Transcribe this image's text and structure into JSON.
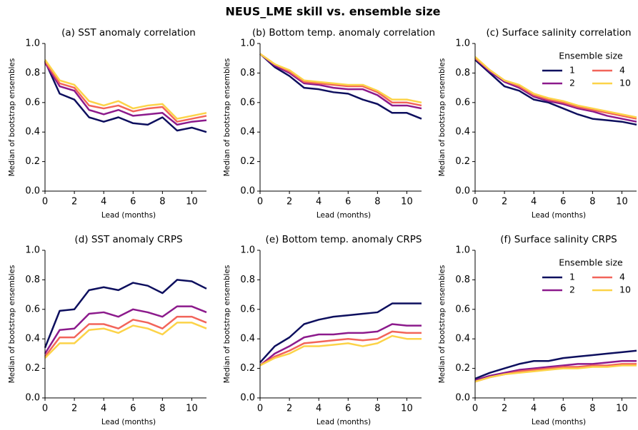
{
  "title": "NEUS_LME skill vs. ensemble size",
  "chart_data": [
    {
      "type": "line",
      "title": "(a) SST anomaly correlation",
      "xlabel": "Lead (months)",
      "ylabel": "Median of bootstrap ensembles",
      "x": [
        0,
        1,
        2,
        3,
        4,
        5,
        6,
        7,
        8,
        9,
        10,
        11
      ],
      "xlim": [
        0,
        11
      ],
      "ylim": [
        0,
        1
      ],
      "xticks": [
        0,
        2,
        4,
        6,
        8,
        10
      ],
      "yticks": [
        {
          "value": 0,
          "label": "0.0"
        },
        {
          "value": 0.2,
          "label": "0.2"
        },
        {
          "value": 0.4,
          "label": "0.4"
        },
        {
          "value": 0.6,
          "label": "0.6"
        },
        {
          "value": 0.8,
          "label": "0.8"
        },
        {
          "value": 1,
          "label": "1.0"
        }
      ],
      "series": [
        {
          "name": "1",
          "color": "#0d0f5e",
          "values": [
            0.88,
            0.66,
            0.62,
            0.5,
            0.47,
            0.5,
            0.46,
            0.45,
            0.5,
            0.41,
            0.43,
            0.4
          ]
        },
        {
          "name": "2",
          "color": "#8c1a8c",
          "values": [
            0.87,
            0.71,
            0.68,
            0.55,
            0.52,
            0.55,
            0.51,
            0.52,
            0.53,
            0.45,
            0.47,
            0.48
          ]
        },
        {
          "name": "4",
          "color": "#f2645a",
          "values": [
            0.88,
            0.73,
            0.7,
            0.58,
            0.56,
            0.58,
            0.54,
            0.56,
            0.57,
            0.47,
            0.49,
            0.51
          ]
        },
        {
          "name": "10",
          "color": "#fcd348",
          "values": [
            0.89,
            0.75,
            0.72,
            0.61,
            0.58,
            0.61,
            0.56,
            0.58,
            0.59,
            0.49,
            0.51,
            0.53
          ]
        }
      ]
    },
    {
      "type": "line",
      "title": "(b) Bottom temp. anomaly correlation",
      "xlabel": "Lead (months)",
      "ylabel": "Median of bootstrap ensembles",
      "x": [
        0,
        1,
        2,
        3,
        4,
        5,
        6,
        7,
        8,
        9,
        10,
        11
      ],
      "xlim": [
        0,
        11
      ],
      "ylim": [
        0,
        1
      ],
      "xticks": [
        0,
        2,
        4,
        6,
        8,
        10
      ],
      "yticks": [
        {
          "value": 0,
          "label": "0.0"
        },
        {
          "value": 0.2,
          "label": "0.2"
        },
        {
          "value": 0.4,
          "label": "0.4"
        },
        {
          "value": 0.6,
          "label": "0.6"
        },
        {
          "value": 0.8,
          "label": "0.8"
        },
        {
          "value": 1,
          "label": "1.0"
        }
      ],
      "series": [
        {
          "name": "1",
          "color": "#0d0f5e",
          "values": [
            0.93,
            0.84,
            0.78,
            0.7,
            0.69,
            0.67,
            0.66,
            0.62,
            0.59,
            0.53,
            0.53,
            0.49
          ]
        },
        {
          "name": "2",
          "color": "#8c1a8c",
          "values": [
            0.93,
            0.85,
            0.8,
            0.73,
            0.72,
            0.7,
            0.69,
            0.69,
            0.65,
            0.58,
            0.58,
            0.56
          ]
        },
        {
          "name": "4",
          "color": "#f2645a",
          "values": [
            0.93,
            0.86,
            0.81,
            0.74,
            0.73,
            0.72,
            0.71,
            0.71,
            0.67,
            0.6,
            0.6,
            0.58
          ]
        },
        {
          "name": "10",
          "color": "#fcd348",
          "values": [
            0.93,
            0.86,
            0.82,
            0.75,
            0.74,
            0.73,
            0.72,
            0.72,
            0.68,
            0.62,
            0.62,
            0.6
          ]
        }
      ]
    },
    {
      "type": "line",
      "title": "(c) Surface salinity correlation",
      "xlabel": "Lead (months)",
      "ylabel": "Median of bootstrap ensembles",
      "x": [
        0,
        1,
        2,
        3,
        4,
        5,
        6,
        7,
        8,
        9,
        10,
        11
      ],
      "xlim": [
        0,
        11
      ],
      "ylim": [
        0,
        1
      ],
      "xticks": [
        0,
        2,
        4,
        6,
        8,
        10
      ],
      "yticks": [
        {
          "value": 0,
          "label": "0.0"
        },
        {
          "value": 0.2,
          "label": "0.2"
        },
        {
          "value": 0.4,
          "label": "0.4"
        },
        {
          "value": 0.6,
          "label": "0.6"
        },
        {
          "value": 0.8,
          "label": "0.8"
        },
        {
          "value": 1,
          "label": "1.0"
        }
      ],
      "legend": "upper right",
      "legend_title": "Ensemble size",
      "series": [
        {
          "name": "1",
          "color": "#0d0f5e",
          "values": [
            0.89,
            0.8,
            0.71,
            0.68,
            0.62,
            0.6,
            0.56,
            0.52,
            0.49,
            0.48,
            0.47,
            0.45
          ]
        },
        {
          "name": "2",
          "color": "#8c1a8c",
          "values": [
            0.9,
            0.81,
            0.74,
            0.7,
            0.64,
            0.61,
            0.59,
            0.56,
            0.54,
            0.51,
            0.49,
            0.47
          ]
        },
        {
          "name": "4",
          "color": "#f2645a",
          "values": [
            0.9,
            0.82,
            0.75,
            0.71,
            0.65,
            0.62,
            0.6,
            0.57,
            0.55,
            0.53,
            0.51,
            0.49
          ]
        },
        {
          "name": "10",
          "color": "#fcd348",
          "values": [
            0.91,
            0.82,
            0.75,
            0.72,
            0.66,
            0.63,
            0.61,
            0.58,
            0.56,
            0.54,
            0.52,
            0.5
          ]
        }
      ]
    },
    {
      "type": "line",
      "title": "(d) SST anomaly CRPS",
      "xlabel": "Lead (months)",
      "ylabel": "Median of bootstrap ensembles",
      "x": [
        0,
        1,
        2,
        3,
        4,
        5,
        6,
        7,
        8,
        9,
        10,
        11
      ],
      "xlim": [
        0,
        11
      ],
      "ylim": [
        0,
        1
      ],
      "xticks": [
        0,
        2,
        4,
        6,
        8,
        10
      ],
      "yticks": [
        {
          "value": 0,
          "label": "0.0"
        },
        {
          "value": 0.2,
          "label": "0.2"
        },
        {
          "value": 0.4,
          "label": "0.4"
        },
        {
          "value": 0.6,
          "label": "0.6"
        },
        {
          "value": 0.8,
          "label": "0.8"
        },
        {
          "value": 1,
          "label": "1.0"
        }
      ],
      "series": [
        {
          "name": "1",
          "color": "#0d0f5e",
          "values": [
            0.34,
            0.59,
            0.6,
            0.73,
            0.75,
            0.73,
            0.78,
            0.76,
            0.71,
            0.8,
            0.79,
            0.74
          ]
        },
        {
          "name": "2",
          "color": "#8c1a8c",
          "values": [
            0.3,
            0.46,
            0.47,
            0.57,
            0.58,
            0.55,
            0.6,
            0.58,
            0.55,
            0.62,
            0.62,
            0.58
          ]
        },
        {
          "name": "4",
          "color": "#f2645a",
          "values": [
            0.28,
            0.41,
            0.41,
            0.5,
            0.5,
            0.47,
            0.53,
            0.51,
            0.47,
            0.55,
            0.55,
            0.51
          ]
        },
        {
          "name": "10",
          "color": "#fcd348",
          "values": [
            0.27,
            0.37,
            0.37,
            0.46,
            0.47,
            0.44,
            0.49,
            0.47,
            0.43,
            0.51,
            0.51,
            0.47
          ]
        }
      ]
    },
    {
      "type": "line",
      "title": "(e) Bottom temp. anomaly CRPS",
      "xlabel": "Lead (months)",
      "ylabel": "Median of bootstrap ensembles",
      "x": [
        0,
        1,
        2,
        3,
        4,
        5,
        6,
        7,
        8,
        9,
        10,
        11
      ],
      "xlim": [
        0,
        11
      ],
      "ylim": [
        0,
        1
      ],
      "xticks": [
        0,
        2,
        4,
        6,
        8,
        10
      ],
      "yticks": [
        {
          "value": 0,
          "label": "0.0"
        },
        {
          "value": 0.2,
          "label": "0.2"
        },
        {
          "value": 0.4,
          "label": "0.4"
        },
        {
          "value": 0.6,
          "label": "0.6"
        },
        {
          "value": 0.8,
          "label": "0.8"
        },
        {
          "value": 1,
          "label": "1.0"
        }
      ],
      "series": [
        {
          "name": "1",
          "color": "#0d0f5e",
          "values": [
            0.24,
            0.35,
            0.41,
            0.5,
            0.53,
            0.55,
            0.56,
            0.57,
            0.58,
            0.64,
            0.64,
            0.64
          ]
        },
        {
          "name": "2",
          "color": "#8c1a8c",
          "values": [
            0.22,
            0.3,
            0.35,
            0.41,
            0.43,
            0.43,
            0.44,
            0.44,
            0.45,
            0.5,
            0.49,
            0.49
          ]
        },
        {
          "name": "4",
          "color": "#f2645a",
          "values": [
            0.22,
            0.28,
            0.32,
            0.37,
            0.38,
            0.39,
            0.4,
            0.39,
            0.4,
            0.45,
            0.44,
            0.44
          ]
        },
        {
          "name": "10",
          "color": "#fcd348",
          "values": [
            0.22,
            0.27,
            0.3,
            0.35,
            0.35,
            0.36,
            0.37,
            0.35,
            0.37,
            0.42,
            0.4,
            0.4
          ]
        }
      ]
    },
    {
      "type": "line",
      "title": "(f) Surface salinity CRPS",
      "xlabel": "Lead (months)",
      "ylabel": "Median of bootstrap ensembles",
      "x": [
        0,
        1,
        2,
        3,
        4,
        5,
        6,
        7,
        8,
        9,
        10,
        11
      ],
      "xlim": [
        0,
        11
      ],
      "ylim": [
        0,
        1
      ],
      "xticks": [
        0,
        2,
        4,
        6,
        8,
        10
      ],
      "yticks": [
        {
          "value": 0,
          "label": "0.0"
        },
        {
          "value": 0.2,
          "label": "0.2"
        },
        {
          "value": 0.4,
          "label": "0.4"
        },
        {
          "value": 0.6,
          "label": "0.6"
        },
        {
          "value": 0.8,
          "label": "0.8"
        },
        {
          "value": 1,
          "label": "1.0"
        }
      ],
      "legend": "upper right",
      "legend_title": "Ensemble size",
      "series": [
        {
          "name": "1",
          "color": "#0d0f5e",
          "values": [
            0.13,
            0.17,
            0.2,
            0.23,
            0.25,
            0.25,
            0.27,
            0.28,
            0.29,
            0.3,
            0.31,
            0.32
          ]
        },
        {
          "name": "2",
          "color": "#8c1a8c",
          "values": [
            0.12,
            0.15,
            0.17,
            0.19,
            0.2,
            0.21,
            0.22,
            0.23,
            0.23,
            0.24,
            0.25,
            0.25
          ]
        },
        {
          "name": "4",
          "color": "#f2645a",
          "values": [
            0.11,
            0.14,
            0.16,
            0.18,
            0.19,
            0.2,
            0.21,
            0.21,
            0.22,
            0.22,
            0.23,
            0.23
          ]
        },
        {
          "name": "10",
          "color": "#fcd348",
          "values": [
            0.11,
            0.14,
            0.16,
            0.17,
            0.18,
            0.19,
            0.2,
            0.2,
            0.21,
            0.21,
            0.22,
            0.22
          ]
        }
      ]
    }
  ]
}
